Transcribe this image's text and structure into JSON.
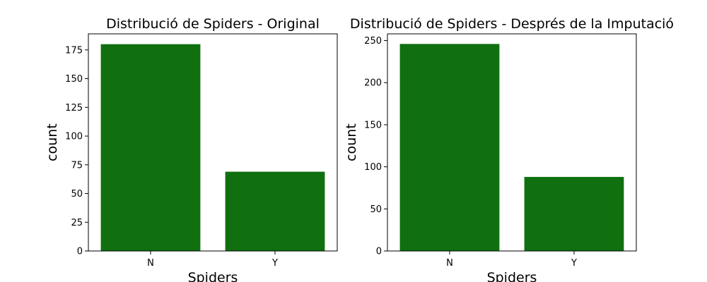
{
  "chart_data": [
    {
      "type": "bar",
      "title": "Distribució de Spiders - Original",
      "xlabel": "Spiders",
      "ylabel": "count",
      "categories": [
        "N",
        "Y"
      ],
      "values": [
        180,
        69
      ],
      "ylim": [
        0,
        189
      ],
      "yticks": [
        0,
        25,
        50,
        75,
        100,
        125,
        150,
        175
      ],
      "bar_color": "#107010",
      "grid": false
    },
    {
      "type": "bar",
      "title": "Distribució de Spiders - Després de la Imputació",
      "xlabel": "Spiders",
      "ylabel": "count",
      "categories": [
        "N",
        "Y"
      ],
      "values": [
        246,
        88
      ],
      "ylim": [
        0,
        258
      ],
      "yticks": [
        0,
        50,
        100,
        150,
        200,
        250
      ],
      "bar_color": "#107010",
      "grid": false
    }
  ]
}
